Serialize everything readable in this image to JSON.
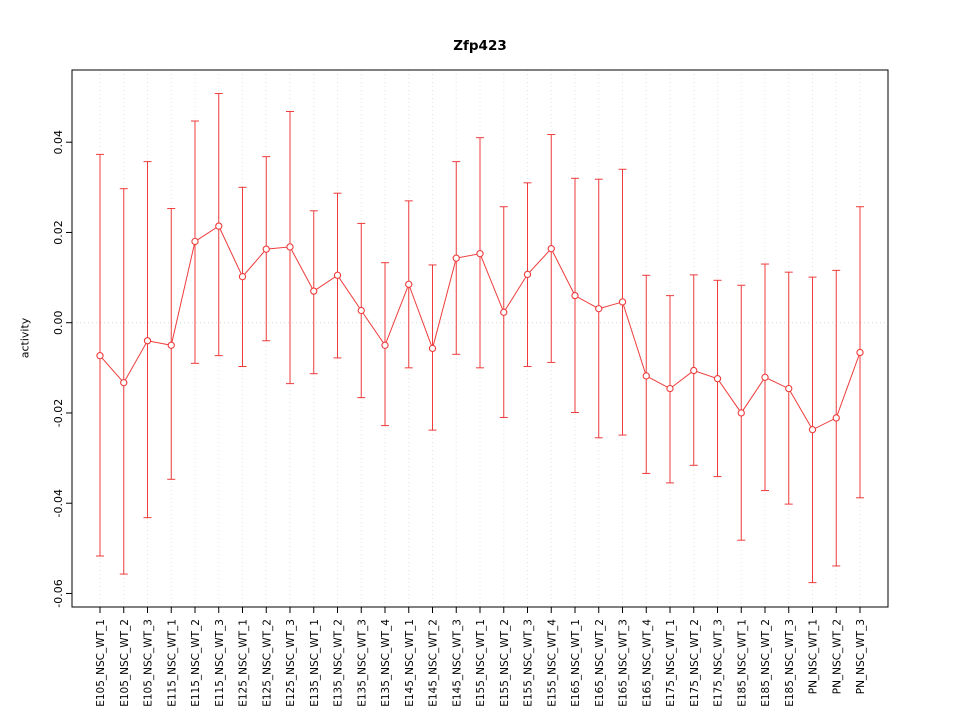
{
  "chart_data": {
    "type": "line",
    "title": "Zfp423",
    "ylabel": "activity",
    "xlabel": "",
    "ylim": [
      -0.063,
      0.056
    ],
    "yticks": [
      -0.06,
      -0.04,
      -0.02,
      0,
      0.02,
      0.04
    ],
    "ytick_labels": [
      "-0.06",
      "-0.04",
      "-0.02",
      "0.00",
      "0.02",
      "0.04"
    ],
    "legend_position": "none",
    "grid": "dotted-vertical-per-category-and-dotted-zero-line",
    "marker": "open-circle",
    "series_color": "#ef3b3b",
    "grid_color": "#e3e3e3",
    "zero_line_color": "#d8d8d8",
    "box_color": "#000000",
    "categories": [
      "E105_NSC_WT_1",
      "E105_NSC_WT_2",
      "E105_NSC_WT_3",
      "E115_NSC_WT_1",
      "E115_NSC_WT_2",
      "E115_NSC_WT_3",
      "E125_NSC_WT_1",
      "E125_NSC_WT_2",
      "E125_NSC_WT_3",
      "E135_NSC_WT_1",
      "E135_NSC_WT_2",
      "E135_NSC_WT_3",
      "E135_NSC_WT_4",
      "E145_NSC_WT_1",
      "E145_NSC_WT_2",
      "E145_NSC_WT_3",
      "E155_NSC_WT_1",
      "E155_NSC_WT_2",
      "E155_NSC_WT_3",
      "E155_NSC_WT_4",
      "E165_NSC_WT_1",
      "E165_NSC_WT_2",
      "E165_NSC_WT_3",
      "E165_NSC_WT_4",
      "E175_NSC_WT_1",
      "E175_NSC_WT_2",
      "E175_NSC_WT_3",
      "E185_NSC_WT_1",
      "E185_NSC_WT_2",
      "E185_NSC_WT_3",
      "PN_NSC_WT_1",
      "PN_NSC_WT_2",
      "PN_NSC_WT_3"
    ],
    "values": [
      -0.0073,
      -0.0133,
      -0.004,
      -0.005,
      0.018,
      0.0214,
      0.0102,
      0.0163,
      0.0168,
      0.007,
      0.0105,
      0.0027,
      -0.005,
      0.0085,
      -0.0057,
      0.0143,
      0.0153,
      0.0023,
      0.0107,
      0.0164,
      0.006,
      0.0031,
      0.0046,
      -0.0118,
      -0.0146,
      -0.0106,
      -0.0124,
      -0.02,
      -0.0121,
      -0.0146,
      -0.0237,
      -0.0211,
      -0.0066
    ],
    "error_low": [
      -0.0517,
      -0.0557,
      -0.0432,
      -0.0347,
      -0.009,
      -0.0073,
      -0.0097,
      -0.004,
      -0.0135,
      -0.0113,
      -0.0078,
      -0.0166,
      -0.0228,
      -0.01,
      -0.0238,
      -0.007,
      -0.01,
      -0.021,
      -0.0097,
      -0.0088,
      -0.0199,
      -0.0255,
      -0.0249,
      -0.0334,
      -0.0355,
      -0.0316,
      -0.0341,
      -0.0482,
      -0.0372,
      -0.0402,
      -0.0576,
      -0.0539,
      -0.0388
    ],
    "error_high": [
      0.0373,
      0.0297,
      0.0357,
      0.0253,
      0.0447,
      0.0508,
      0.03,
      0.0368,
      0.0468,
      0.0248,
      0.0287,
      0.022,
      0.0133,
      0.027,
      0.0128,
      0.0357,
      0.041,
      0.0257,
      0.031,
      0.0417,
      0.032,
      0.0318,
      0.034,
      0.0105,
      0.006,
      0.0106,
      0.0094,
      0.0083,
      0.013,
      0.0112,
      0.0101,
      0.0116,
      0.0257
    ]
  }
}
